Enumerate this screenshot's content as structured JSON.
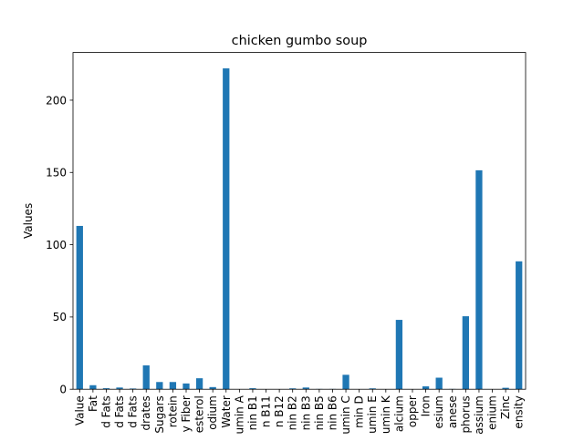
{
  "chart_data": {
    "type": "bar",
    "title": "chicken gumbo soup",
    "xlabel": "",
    "ylabel": "Values",
    "ylim": [
      0,
      233
    ],
    "yticks": [
      0,
      50,
      100,
      150,
      200
    ],
    "grid": false,
    "legend": "none",
    "bar_color": "#1f77b4",
    "categories": [
      "Value",
      "Fat",
      "d Fats",
      "d Fats",
      "d Fats",
      "drates",
      "Sugars",
      "rotein",
      "y Fiber",
      "esterol",
      "odium",
      "Water",
      "umin A",
      "nin B1",
      "n B11",
      "n B12",
      "nin B2",
      "nin B3",
      "nin B5",
      "nin B6",
      "umin C",
      "min D",
      "umin E",
      "umin K",
      "alcium",
      "opper",
      "Iron",
      "esium",
      "anese",
      "phorus",
      "assium",
      "enium",
      "Zinc",
      "ensity"
    ],
    "values": [
      113,
      2.8,
      0.7,
      1.2,
      0.5,
      16.5,
      5,
      5,
      4,
      7.6,
      1.5,
      222,
      0,
      0.7,
      0,
      0,
      0.6,
      1.2,
      0.2,
      0.2,
      10,
      0,
      0.6,
      0,
      48,
      0,
      2,
      8,
      0.2,
      50.5,
      151.5,
      0,
      1,
      88.5
    ]
  }
}
